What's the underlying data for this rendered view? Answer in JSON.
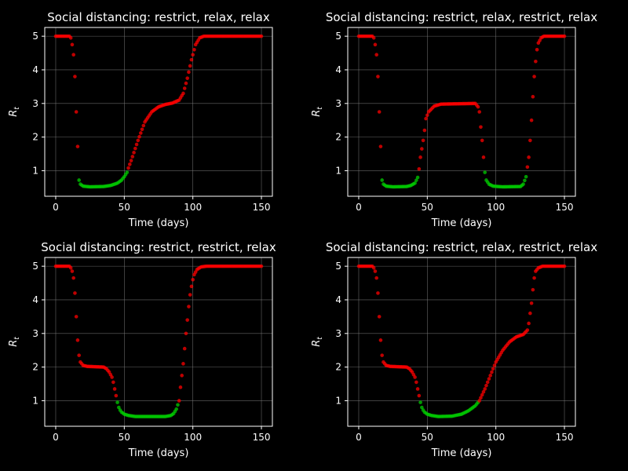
{
  "figure": {
    "background": "#000000",
    "foreground": "#ffffff",
    "grid_color": "#808080"
  },
  "colors": {
    "above_one": "#ff0000",
    "below_one": "#00cc00"
  },
  "chart_data": [
    {
      "type": "scatter",
      "title": "Social distancing: restrict, relax, relax",
      "xlabel": "Time (days)",
      "ylabel": "R",
      "ylabel_subscript": "t",
      "xlim": [
        -8,
        158
      ],
      "ylim": [
        0.24,
        5.26
      ],
      "xticks": [
        0,
        50,
        100,
        150
      ],
      "yticks": [
        1,
        2,
        3,
        4,
        5
      ],
      "grid": true,
      "keypoints": [
        [
          0,
          5.0
        ],
        [
          10,
          5.0
        ],
        [
          11,
          4.95
        ],
        [
          12,
          4.75
        ],
        [
          13,
          4.45
        ],
        [
          14,
          3.8
        ],
        [
          15,
          2.75
        ],
        [
          16,
          1.72
        ],
        [
          17,
          0.72
        ],
        [
          18,
          0.6
        ],
        [
          20,
          0.54
        ],
        [
          25,
          0.52
        ],
        [
          35,
          0.53
        ],
        [
          40,
          0.56
        ],
        [
          45,
          0.63
        ],
        [
          48,
          0.72
        ],
        [
          50,
          0.82
        ],
        [
          52,
          0.95
        ],
        [
          53,
          1.08
        ],
        [
          55,
          1.3
        ],
        [
          60,
          1.9
        ],
        [
          65,
          2.45
        ],
        [
          70,
          2.75
        ],
        [
          75,
          2.9
        ],
        [
          80,
          2.97
        ],
        [
          85,
          3.01
        ],
        [
          90,
          3.1
        ],
        [
          93,
          3.3
        ],
        [
          96,
          3.75
        ],
        [
          99,
          4.3
        ],
        [
          102,
          4.75
        ],
        [
          105,
          4.95
        ],
        [
          108,
          5.0
        ],
        [
          150,
          5.0
        ]
      ]
    },
    {
      "type": "scatter",
      "title": "Social distancing: restrict, relax, restrict, relax",
      "xlabel": "Time (days)",
      "ylabel": "R",
      "ylabel_subscript": "t",
      "xlim": [
        -8,
        158
      ],
      "ylim": [
        0.24,
        5.26
      ],
      "xticks": [
        0,
        50,
        100,
        150
      ],
      "yticks": [
        1,
        2,
        3,
        4,
        5
      ],
      "grid": true,
      "keypoints": [
        [
          0,
          5.0
        ],
        [
          10,
          5.0
        ],
        [
          11,
          4.95
        ],
        [
          12,
          4.75
        ],
        [
          13,
          4.45
        ],
        [
          14,
          3.8
        ],
        [
          15,
          2.75
        ],
        [
          16,
          1.72
        ],
        [
          17,
          0.72
        ],
        [
          18,
          0.6
        ],
        [
          20,
          0.54
        ],
        [
          25,
          0.52
        ],
        [
          35,
          0.53
        ],
        [
          38,
          0.56
        ],
        [
          41,
          0.63
        ],
        [
          43,
          0.8
        ],
        [
          44,
          1.05
        ],
        [
          45,
          1.4
        ],
        [
          46,
          1.65
        ],
        [
          47,
          1.9
        ],
        [
          48,
          2.2
        ],
        [
          49,
          2.55
        ],
        [
          51,
          2.75
        ],
        [
          55,
          2.92
        ],
        [
          60,
          2.98
        ],
        [
          85,
          3.0
        ],
        [
          87,
          2.9
        ],
        [
          88,
          2.75
        ],
        [
          89,
          2.3
        ],
        [
          90,
          1.9
        ],
        [
          91,
          1.4
        ],
        [
          92,
          0.95
        ],
        [
          93,
          0.72
        ],
        [
          95,
          0.6
        ],
        [
          98,
          0.54
        ],
        [
          105,
          0.52
        ],
        [
          118,
          0.53
        ],
        [
          120,
          0.6
        ],
        [
          122,
          0.82
        ],
        [
          124,
          1.4
        ],
        [
          125,
          1.9
        ],
        [
          126,
          2.5
        ],
        [
          127,
          3.2
        ],
        [
          128,
          3.8
        ],
        [
          129,
          4.25
        ],
        [
          130,
          4.6
        ],
        [
          131,
          4.8
        ],
        [
          133,
          4.95
        ],
        [
          135,
          5.0
        ],
        [
          150,
          5.0
        ]
      ]
    },
    {
      "type": "scatter",
      "title": "Social distancing: restrict, restrict, relax",
      "xlabel": "Time (days)",
      "ylabel": "R",
      "ylabel_subscript": "t",
      "xlim": [
        -8,
        158
      ],
      "ylim": [
        0.24,
        5.26
      ],
      "xticks": [
        0,
        50,
        100,
        150
      ],
      "yticks": [
        1,
        2,
        3,
        4,
        5
      ],
      "grid": true,
      "keypoints": [
        [
          0,
          5.0
        ],
        [
          10,
          5.0
        ],
        [
          11,
          4.95
        ],
        [
          12,
          4.85
        ],
        [
          13,
          4.65
        ],
        [
          14,
          4.2
        ],
        [
          15,
          3.5
        ],
        [
          16,
          2.8
        ],
        [
          17,
          2.35
        ],
        [
          18,
          2.15
        ],
        [
          20,
          2.05
        ],
        [
          23,
          2.02
        ],
        [
          35,
          2.0
        ],
        [
          37,
          1.95
        ],
        [
          39,
          1.85
        ],
        [
          41,
          1.7
        ],
        [
          42,
          1.55
        ],
        [
          43,
          1.35
        ],
        [
          44,
          1.15
        ],
        [
          45,
          0.95
        ],
        [
          46,
          0.8
        ],
        [
          47,
          0.72
        ],
        [
          48,
          0.66
        ],
        [
          50,
          0.6
        ],
        [
          53,
          0.56
        ],
        [
          58,
          0.53
        ],
        [
          80,
          0.53
        ],
        [
          84,
          0.56
        ],
        [
          86,
          0.62
        ],
        [
          88,
          0.75
        ],
        [
          90,
          1.0
        ],
        [
          91,
          1.4
        ],
        [
          92,
          1.75
        ],
        [
          93,
          2.1
        ],
        [
          94,
          2.55
        ],
        [
          95,
          3.0
        ],
        [
          96,
          3.4
        ],
        [
          97,
          3.8
        ],
        [
          98,
          4.15
        ],
        [
          99,
          4.4
        ],
        [
          100,
          4.6
        ],
        [
          101,
          4.75
        ],
        [
          103,
          4.9
        ],
        [
          106,
          4.98
        ],
        [
          110,
          5.0
        ],
        [
          150,
          5.0
        ]
      ]
    },
    {
      "type": "scatter",
      "title": "Social distancing: restrict, relax, restrict, relax",
      "xlabel": "Time (days)",
      "ylabel": "R",
      "ylabel_subscript": "t",
      "xlim": [
        -8,
        158
      ],
      "ylim": [
        0.24,
        5.26
      ],
      "xticks": [
        0,
        50,
        100,
        150
      ],
      "yticks": [
        1,
        2,
        3,
        4,
        5
      ],
      "grid": true,
      "keypoints": [
        [
          0,
          5.0
        ],
        [
          10,
          5.0
        ],
        [
          11,
          4.95
        ],
        [
          12,
          4.85
        ],
        [
          13,
          4.65
        ],
        [
          14,
          4.2
        ],
        [
          15,
          3.5
        ],
        [
          16,
          2.8
        ],
        [
          17,
          2.35
        ],
        [
          18,
          2.15
        ],
        [
          20,
          2.05
        ],
        [
          23,
          2.02
        ],
        [
          35,
          2.0
        ],
        [
          37,
          1.95
        ],
        [
          39,
          1.85
        ],
        [
          41,
          1.7
        ],
        [
          42,
          1.55
        ],
        [
          43,
          1.35
        ],
        [
          44,
          1.15
        ],
        [
          45,
          0.95
        ],
        [
          46,
          0.8
        ],
        [
          47,
          0.72
        ],
        [
          48,
          0.66
        ],
        [
          50,
          0.6
        ],
        [
          53,
          0.56
        ],
        [
          58,
          0.53
        ],
        [
          68,
          0.54
        ],
        [
          75,
          0.6
        ],
        [
          80,
          0.7
        ],
        [
          85,
          0.85
        ],
        [
          88,
          1.0
        ],
        [
          92,
          1.35
        ],
        [
          96,
          1.75
        ],
        [
          100,
          2.15
        ],
        [
          105,
          2.5
        ],
        [
          110,
          2.75
        ],
        [
          115,
          2.9
        ],
        [
          120,
          2.97
        ],
        [
          123,
          3.1
        ],
        [
          124,
          3.3
        ],
        [
          125,
          3.6
        ],
        [
          126,
          3.9
        ],
        [
          127,
          4.3
        ],
        [
          128,
          4.65
        ],
        [
          129,
          4.85
        ],
        [
          131,
          4.95
        ],
        [
          134,
          5.0
        ],
        [
          150,
          5.0
        ]
      ]
    }
  ]
}
